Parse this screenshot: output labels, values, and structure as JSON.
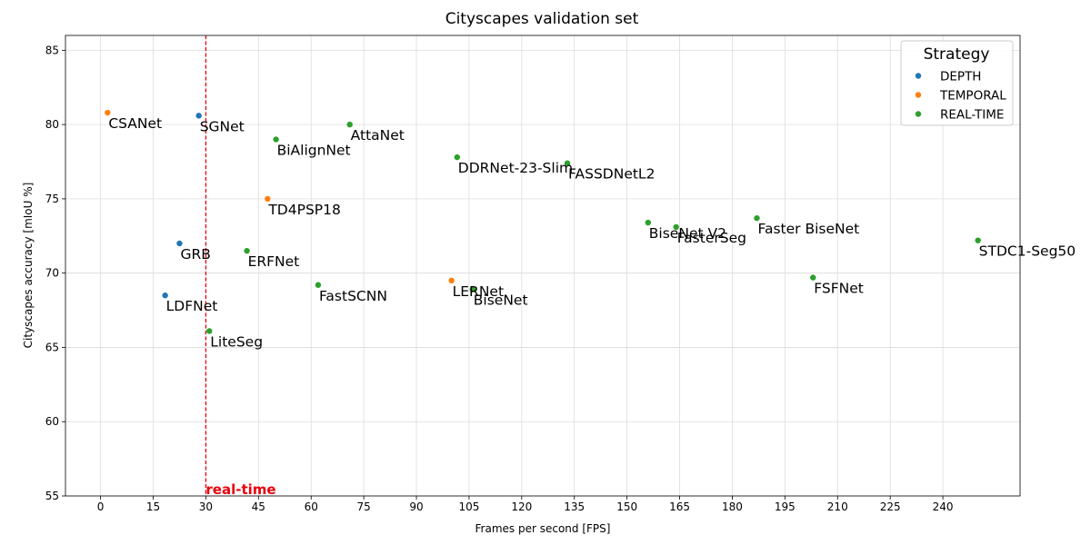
{
  "chart_data": {
    "type": "scatter",
    "title": "Cityscapes validation set",
    "xlabel": "Frames per second [FPS]",
    "ylabel": "Cityscapes accuracy [mIoU %]",
    "xlim": [
      -10,
      262
    ],
    "ylim": [
      55,
      86
    ],
    "xticks": [
      0,
      15,
      30,
      45,
      60,
      75,
      90,
      105,
      120,
      135,
      150,
      165,
      180,
      195,
      210,
      225,
      240
    ],
    "yticks": [
      55,
      60,
      65,
      70,
      75,
      80,
      85
    ],
    "grid": true,
    "legend": {
      "title": "Strategy",
      "placement": "top-right"
    },
    "series": [
      {
        "name": "DEPTH",
        "color": "#1f77b4",
        "points": [
          {
            "label": "SGNet",
            "x": 28,
            "y": 80.6
          },
          {
            "label": "GRB",
            "x": 22.5,
            "y": 72.0
          },
          {
            "label": "LDFNet",
            "x": 18.4,
            "y": 68.5
          }
        ]
      },
      {
        "name": "TEMPORAL",
        "color": "#ff7f0e",
        "points": [
          {
            "label": "CSANet",
            "x": 2,
            "y": 80.8
          },
          {
            "label": "TD4PSP18",
            "x": 47.6,
            "y": 75.0
          },
          {
            "label": "LERNet",
            "x": 100,
            "y": 69.5
          }
        ]
      },
      {
        "name": "REAL-TIME",
        "color": "#2ca02c",
        "points": [
          {
            "label": "AttaNet",
            "x": 71,
            "y": 80.0
          },
          {
            "label": "BiAlignNet",
            "x": 50,
            "y": 79.0
          },
          {
            "label": "DDRNet-23-Slim",
            "x": 101.6,
            "y": 77.8
          },
          {
            "label": "FASSDNetL2",
            "x": 133,
            "y": 77.4
          },
          {
            "label": "BiseNet V2",
            "x": 156,
            "y": 73.4
          },
          {
            "label": "FasterSeg",
            "x": 164,
            "y": 73.1
          },
          {
            "label": "Faster BiseNet",
            "x": 187,
            "y": 73.7
          },
          {
            "label": "STDC1-Seg50",
            "x": 250,
            "y": 72.2
          },
          {
            "label": "ERFNet",
            "x": 41.7,
            "y": 71.5
          },
          {
            "label": "FastSCNN",
            "x": 62,
            "y": 69.2
          },
          {
            "label": "BiseNet",
            "x": 106,
            "y": 68.9
          },
          {
            "label": "FSFNet",
            "x": 203,
            "y": 69.7
          },
          {
            "label": "LiteSeg",
            "x": 31,
            "y": 66.1
          }
        ]
      }
    ],
    "reference_line": {
      "x": 30,
      "label": "real-time",
      "color": "#e8000b",
      "style": "dashed"
    }
  }
}
